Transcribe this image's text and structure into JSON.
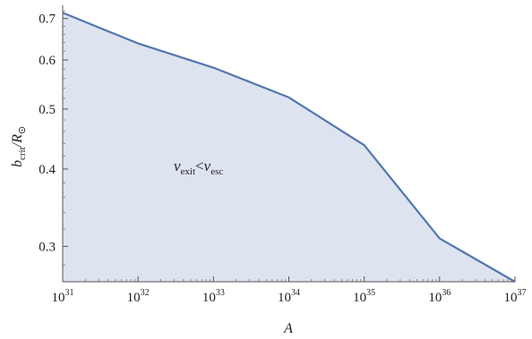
{
  "chart_data": {
    "type": "area",
    "x_scale": "log",
    "y_scale": "log",
    "xlim": [
      1e+31,
      1e+37
    ],
    "ylim": [
      0.263,
      0.735
    ],
    "x": [
      1e+31,
      1e+32,
      1e+33,
      1e+34,
      1e+35,
      1e+36,
      1e+37
    ],
    "series": [
      {
        "values": [
          0.715,
          0.638,
          0.583,
          0.522,
          0.437,
          0.309,
          0.263
        ]
      }
    ],
    "fill_color": "#dde3ef",
    "line_color": "#5277ae",
    "x_ticks": [
      {
        "base": "10",
        "exp": "31"
      },
      {
        "base": "10",
        "exp": "32"
      },
      {
        "base": "10",
        "exp": "33"
      },
      {
        "base": "10",
        "exp": "34"
      },
      {
        "base": "10",
        "exp": "35"
      },
      {
        "base": "10",
        "exp": "36"
      },
      {
        "base": "10",
        "exp": "37"
      }
    ],
    "y_ticks": [
      {
        "value": 0.3,
        "label": "0.3"
      },
      {
        "value": 0.4,
        "label": "0.4"
      },
      {
        "value": 0.5,
        "label": "0.5"
      },
      {
        "value": 0.6,
        "label": "0.6"
      },
      {
        "value": 0.7,
        "label": "0.7"
      }
    ],
    "xlabel": "A",
    "ylabel": {
      "main": "b",
      "sub1": "crit",
      "sep": "/R",
      "sub2": "⊙"
    },
    "annotation": {
      "v1": "v",
      "sub1": "exit",
      "op": "<",
      "v2": "v",
      "sub2": "esc"
    },
    "grid": false
  }
}
